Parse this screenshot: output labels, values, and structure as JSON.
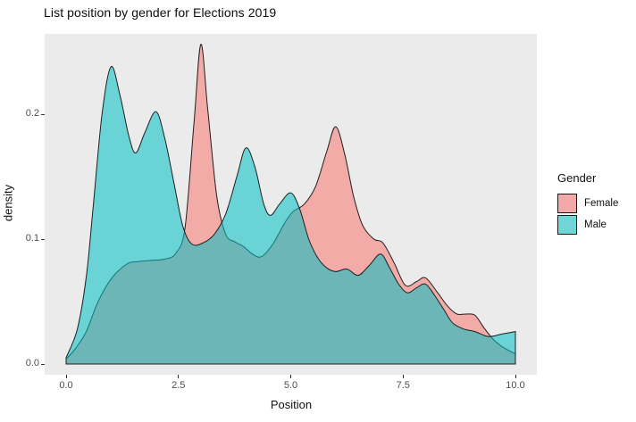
{
  "title": "List position by gender for Elections 2019",
  "x_axis": {
    "label": "Position",
    "tick_labels": [
      "0.0",
      "2.5",
      "5.0",
      "7.5",
      "10.0"
    ],
    "tick_values": [
      0,
      2.5,
      5,
      7.5,
      10
    ]
  },
  "y_axis": {
    "label": "density",
    "tick_labels": [
      "0.0",
      "0.1",
      "0.2"
    ],
    "tick_values": [
      0,
      0.1,
      0.2
    ]
  },
  "legend": {
    "title": "Gender",
    "items": [
      {
        "label": "Female",
        "swatch_color": "#F2A9A7"
      },
      {
        "label": "Male",
        "swatch_color": "#70D5D7"
      }
    ]
  },
  "colors": {
    "panel_bg": "#EBEBEB",
    "page_bg": "#FFFFFF",
    "outline": "#1f1f1f",
    "female_fill": "#F8766D",
    "male_fill": "#00BFC4"
  },
  "chart_data": {
    "type": "area",
    "subtype": "overlapping-density",
    "title": "List position by gender for Elections 2019",
    "xlabel": "Position",
    "ylabel": "density",
    "xlim": [
      0,
      10
    ],
    "ylim": [
      0,
      0.26
    ],
    "grid": false,
    "legend_position": "right",
    "fill_opacity": 0.55,
    "series": [
      {
        "name": "Female",
        "color": "#F8766D",
        "points": [
          [
            0,
            0.004
          ],
          [
            0.2,
            0.012
          ],
          [
            0.45,
            0.026
          ],
          [
            0.7,
            0.049
          ],
          [
            1.0,
            0.068
          ],
          [
            1.35,
            0.08
          ],
          [
            1.6,
            0.082
          ],
          [
            1.9,
            0.083
          ],
          [
            2.2,
            0.084
          ],
          [
            2.45,
            0.089
          ],
          [
            2.65,
            0.11
          ],
          [
            2.85,
            0.195
          ],
          [
            3.0,
            0.256
          ],
          [
            3.15,
            0.205
          ],
          [
            3.35,
            0.135
          ],
          [
            3.55,
            0.104
          ],
          [
            3.75,
            0.098
          ],
          [
            3.95,
            0.094
          ],
          [
            4.15,
            0.088
          ],
          [
            4.35,
            0.086
          ],
          [
            4.6,
            0.096
          ],
          [
            4.85,
            0.112
          ],
          [
            5.05,
            0.122
          ],
          [
            5.3,
            0.128
          ],
          [
            5.55,
            0.142
          ],
          [
            5.8,
            0.17
          ],
          [
            6.0,
            0.19
          ],
          [
            6.2,
            0.168
          ],
          [
            6.4,
            0.134
          ],
          [
            6.6,
            0.111
          ],
          [
            6.85,
            0.1
          ],
          [
            7.05,
            0.097
          ],
          [
            7.3,
            0.081
          ],
          [
            7.55,
            0.063
          ],
          [
            7.8,
            0.066
          ],
          [
            8.0,
            0.069
          ],
          [
            8.25,
            0.058
          ],
          [
            8.5,
            0.046
          ],
          [
            8.7,
            0.04
          ],
          [
            8.9,
            0.04
          ],
          [
            9.1,
            0.039
          ],
          [
            9.3,
            0.029
          ],
          [
            9.5,
            0.02
          ],
          [
            9.7,
            0.014
          ],
          [
            10,
            0.008
          ]
        ]
      },
      {
        "name": "Male",
        "color": "#00BFC4",
        "points": [
          [
            0,
            0.005
          ],
          [
            0.25,
            0.028
          ],
          [
            0.45,
            0.07
          ],
          [
            0.6,
            0.125
          ],
          [
            0.8,
            0.2
          ],
          [
            1.0,
            0.238
          ],
          [
            1.2,
            0.215
          ],
          [
            1.4,
            0.182
          ],
          [
            1.55,
            0.169
          ],
          [
            1.75,
            0.185
          ],
          [
            2.0,
            0.202
          ],
          [
            2.2,
            0.18
          ],
          [
            2.4,
            0.145
          ],
          [
            2.6,
            0.11
          ],
          [
            2.8,
            0.096
          ],
          [
            3.05,
            0.097
          ],
          [
            3.3,
            0.104
          ],
          [
            3.55,
            0.12
          ],
          [
            3.8,
            0.15
          ],
          [
            4.0,
            0.173
          ],
          [
            4.2,
            0.158
          ],
          [
            4.4,
            0.128
          ],
          [
            4.55,
            0.119
          ],
          [
            4.75,
            0.128
          ],
          [
            5.0,
            0.137
          ],
          [
            5.2,
            0.124
          ],
          [
            5.4,
            0.1
          ],
          [
            5.6,
            0.085
          ],
          [
            5.8,
            0.077
          ],
          [
            6.0,
            0.074
          ],
          [
            6.25,
            0.076
          ],
          [
            6.5,
            0.071
          ],
          [
            6.75,
            0.079
          ],
          [
            7.0,
            0.088
          ],
          [
            7.2,
            0.077
          ],
          [
            7.4,
            0.064
          ],
          [
            7.6,
            0.057
          ],
          [
            7.8,
            0.061
          ],
          [
            8.0,
            0.064
          ],
          [
            8.2,
            0.055
          ],
          [
            8.4,
            0.044
          ],
          [
            8.6,
            0.033
          ],
          [
            8.85,
            0.028
          ],
          [
            9.1,
            0.026
          ],
          [
            9.4,
            0.022
          ],
          [
            9.7,
            0.024
          ],
          [
            10,
            0.026
          ]
        ]
      }
    ]
  }
}
